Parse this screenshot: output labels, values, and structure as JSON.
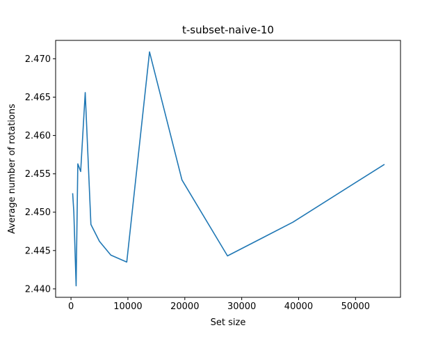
{
  "chart_data": {
    "type": "line",
    "title": "t-subset-naive-10",
    "xlabel": "Set size",
    "ylabel": "Average number of rotations",
    "xlim": [
      -2700,
      57900
    ],
    "ylim": [
      2.4389,
      2.4724
    ],
    "xticks": [
      0,
      10000,
      20000,
      30000,
      40000,
      50000
    ],
    "xtick_labels": [
      "0",
      "10000",
      "20000",
      "30000",
      "40000",
      "50000"
    ],
    "yticks": [
      2.44,
      2.445,
      2.45,
      2.455,
      2.46,
      2.465,
      2.47
    ],
    "ytick_labels": [
      "2.440",
      "2.445",
      "2.450",
      "2.455",
      "2.460",
      "2.465",
      "2.470"
    ],
    "grid": false,
    "series": [
      {
        "color": "#1f77b4",
        "x": [
          300,
          500,
          900,
          1200,
          1700,
          2500,
          3500,
          5000,
          7000,
          9800,
          13800,
          19500,
          27500,
          39000,
          55000
        ],
        "y": [
          2.4524,
          2.45,
          2.4404,
          2.4563,
          2.4553,
          2.4656,
          2.4484,
          2.4462,
          2.4444,
          2.4435,
          2.4709,
          2.4542,
          2.4443,
          2.4487,
          2.4562
        ]
      }
    ]
  }
}
